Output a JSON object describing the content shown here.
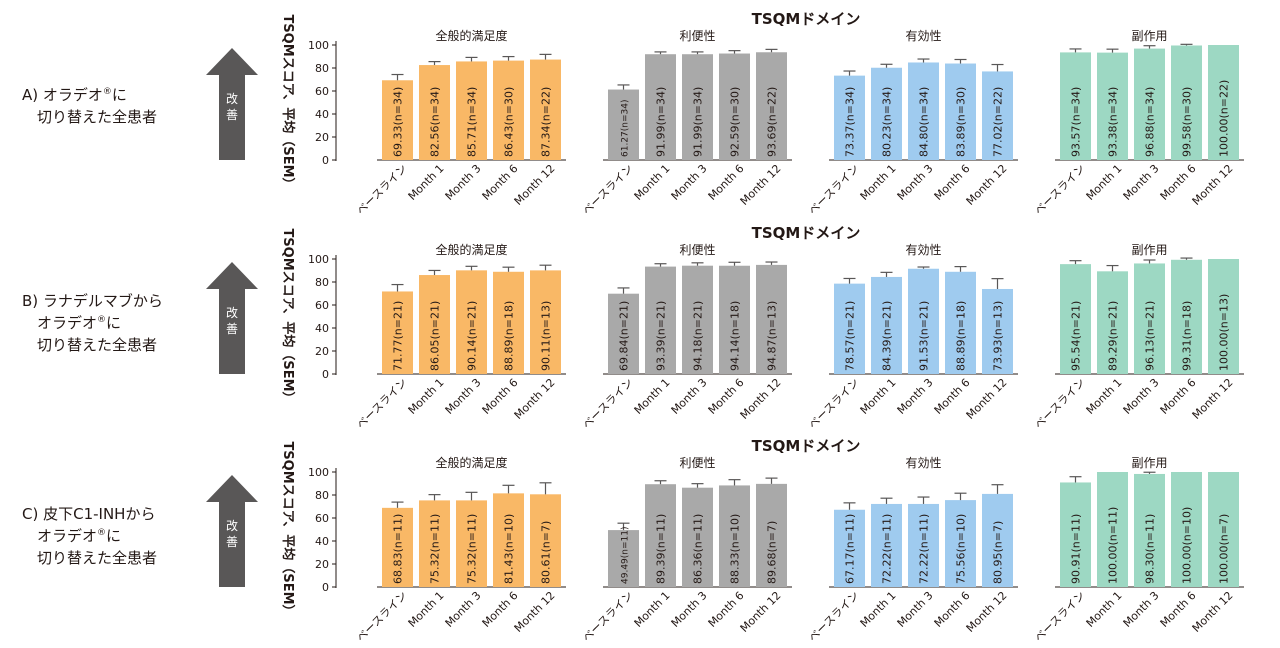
{
  "colors": {
    "satisfaction": "#F9B866",
    "convenience": "#A9A9A9",
    "effectiveness": "#9FCBEF",
    "side_effects": "#9DD8C3",
    "arrow": "#595757",
    "axis": "#231815",
    "error_bar": "#595757"
  },
  "arrow_label": "改善",
  "y_axis_label": "TSQMスコア、平均（SEM）",
  "domain_header": "TSQMドメイン",
  "chart_data": [
    {
      "type": "bar",
      "row_label": [
        "A) オラデオ",
        "®",
        "に",
        "切り替えた全患者"
      ],
      "ylim": [
        0,
        100
      ],
      "yticks": [
        0,
        20,
        40,
        60,
        80,
        100
      ],
      "categories": [
        "ベースライン",
        "Month 1",
        "Month 3",
        "Month 6",
        "Month 12"
      ],
      "series": [
        {
          "name": "全般的満足度",
          "color_key": "satisfaction",
          "values": [
            69.33,
            82.56,
            85.71,
            86.43,
            87.34
          ],
          "err": [
            5,
            3,
            3.5,
            3.5,
            4.5
          ],
          "labels": [
            "69.33(n=34)",
            "82.56(n=34)",
            "85.71(n=34)",
            "86.43(n=30)",
            "87.34(n=22)"
          ]
        },
        {
          "name": "利便性",
          "color_key": "convenience",
          "values": [
            61.27,
            91.99,
            91.99,
            92.59,
            93.69
          ],
          "err": [
            4,
            2,
            2,
            2.5,
            2.5
          ],
          "labels": [
            "61.27(n=34)",
            "91.99(n=34)",
            "91.99(n=34)",
            "92.59(n=30)",
            "93.69(n=22)"
          ]
        },
        {
          "name": "有効性",
          "color_key": "effectiveness",
          "values": [
            73.37,
            80.23,
            84.8,
            83.89,
            77.02
          ],
          "err": [
            4,
            3,
            3,
            3.5,
            6
          ],
          "labels": [
            "73.37(n=34)",
            "80.23(n=34)",
            "84.80(n=34)",
            "83.89(n=30)",
            "77.02(n=22)"
          ]
        },
        {
          "name": "副作用",
          "color_key": "side_effects",
          "values": [
            93.57,
            93.38,
            96.88,
            99.58,
            100.0
          ],
          "err": [
            3,
            3,
            2.5,
            1,
            0
          ],
          "labels": [
            "93.57(n=34)",
            "93.38(n=34)",
            "96.88(n=34)",
            "99.58(n=30)",
            "100.00(n=22)"
          ]
        }
      ]
    },
    {
      "type": "bar",
      "row_label": [
        "B) ラナデルマブから",
        "オラデオ",
        "®",
        "に",
        "切り替えた全患者"
      ],
      "ylim": [
        0,
        100
      ],
      "yticks": [
        0,
        20,
        40,
        60,
        80,
        100
      ],
      "categories": [
        "ベースライン",
        "Month 1",
        "Month 3",
        "Month 6",
        "Month 12"
      ],
      "series": [
        {
          "name": "全般的満足度",
          "color_key": "satisfaction",
          "values": [
            71.77,
            86.05,
            90.14,
            88.89,
            90.11
          ],
          "err": [
            6,
            4,
            3.5,
            4,
            4.5
          ],
          "labels": [
            "71.77(n=21)",
            "86.05(n=21)",
            "90.14(n=21)",
            "88.89(n=18)",
            "90.11(n=13)"
          ]
        },
        {
          "name": "利便性",
          "color_key": "convenience",
          "values": [
            69.84,
            93.39,
            94.18,
            94.14,
            94.87
          ],
          "err": [
            5,
            2.5,
            2.5,
            3,
            2.5
          ],
          "labels": [
            "69.84(n=21)",
            "93.39(n=21)",
            "94.18(n=21)",
            "94.14(n=18)",
            "94.87(n=13)"
          ]
        },
        {
          "name": "有効性",
          "color_key": "effectiveness",
          "values": [
            78.57,
            84.39,
            91.53,
            88.89,
            73.93
          ],
          "err": [
            4.5,
            4,
            1.5,
            4.5,
            9
          ],
          "labels": [
            "78.57(n=21)",
            "84.39(n=21)",
            "91.53(n=21)",
            "88.89(n=18)",
            "73.93(n=13)"
          ]
        },
        {
          "name": "副作用",
          "color_key": "side_effects",
          "values": [
            95.54,
            89.29,
            96.13,
            99.31,
            100.0
          ],
          "err": [
            3,
            5,
            3,
            1.5,
            0
          ],
          "labels": [
            "95.54(n=21)",
            "89.29(n=21)",
            "96.13(n=21)",
            "99.31(n=18)",
            "100.00(n=13)"
          ]
        }
      ]
    },
    {
      "type": "bar",
      "row_label": [
        "C) 皮下C1-INHから",
        "オラデオ",
        "®",
        "に",
        "切り替えた全患者"
      ],
      "ylim": [
        0,
        100
      ],
      "yticks": [
        0,
        20,
        40,
        60,
        80,
        100
      ],
      "categories": [
        "ベースライン",
        "Month 1",
        "Month 3",
        "Month 6",
        "Month 12"
      ],
      "series": [
        {
          "name": "全般的満足度",
          "color_key": "satisfaction",
          "values": [
            68.83,
            75.32,
            75.32,
            81.43,
            80.61
          ],
          "err": [
            5,
            5,
            7,
            7,
            10
          ],
          "labels": [
            "68.83(n=11)",
            "75.32(n=11)",
            "75.32(n=11)",
            "81.43(n=10)",
            "80.61(n=7)"
          ]
        },
        {
          "name": "利便性",
          "color_key": "convenience",
          "values": [
            49.49,
            89.39,
            86.36,
            88.33,
            89.68
          ],
          "err": [
            6,
            3,
            3.5,
            5,
            5
          ],
          "labels": [
            "49.49(n=11)",
            "89.39(n=11)",
            "86.36(n=11)",
            "88.33(n=10)",
            "89.68(n=7)"
          ]
        },
        {
          "name": "有効性",
          "color_key": "effectiveness",
          "values": [
            67.17,
            72.22,
            72.22,
            75.56,
            80.95
          ],
          "err": [
            6,
            5,
            6,
            6,
            8
          ],
          "labels": [
            "67.17(n=11)",
            "72.22(n=11)",
            "72.22(n=11)",
            "75.56(n=10)",
            "80.95(n=7)"
          ]
        },
        {
          "name": "副作用",
          "color_key": "side_effects",
          "values": [
            90.91,
            100.0,
            98.3,
            100.0,
            100.0
          ],
          "err": [
            5,
            0,
            1.5,
            0,
            0
          ],
          "labels": [
            "90.91(n=11)",
            "100.00(n=11)",
            "98.30(n=11)",
            "100.00(n=10)",
            "100.00(n=7)"
          ]
        }
      ]
    }
  ]
}
